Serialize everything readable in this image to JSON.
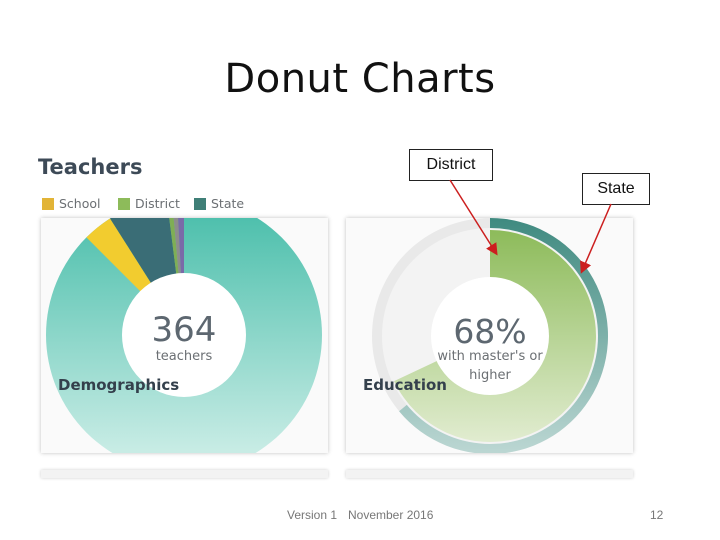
{
  "slide": {
    "title": "Donut Charts",
    "footer_version": "Version 1",
    "footer_date": "November 2016",
    "page_number": "12"
  },
  "widget": {
    "title": "Teachers",
    "legend": [
      {
        "label": "School",
        "color": "#e2b437"
      },
      {
        "label": "District",
        "color": "#8dbb5a"
      },
      {
        "label": "State",
        "color": "#3f7f77"
      }
    ]
  },
  "panels": {
    "demographics": {
      "value": "364",
      "unit": "teachers",
      "label": "Demographics"
    },
    "education": {
      "value": "68%",
      "unit_line1": "with master's or",
      "unit_line2": "higher",
      "label": "Education"
    }
  },
  "callouts": {
    "district": "District",
    "state": "State"
  },
  "chart_data": [
    {
      "type": "donut",
      "center_value": "364",
      "center_label": "teachers",
      "panel_label": "Demographics",
      "slices": [
        {
          "name": "teal-majority",
          "fraction": 0.875,
          "color": "#4cc0ad"
        },
        {
          "name": "yellow",
          "fraction": 0.035,
          "color": "#f2cc2f"
        },
        {
          "name": "dark-teal",
          "fraction": 0.07,
          "color": "#3a6d76"
        },
        {
          "name": "green",
          "fraction": 0.006,
          "color": "#7fae55"
        },
        {
          "name": "grey",
          "fraction": 0.006,
          "color": "#8d8d8d"
        },
        {
          "name": "purple",
          "fraction": 0.008,
          "color": "#7a6aa8"
        }
      ]
    },
    {
      "type": "donut",
      "center_value": "68%",
      "center_label": "with master's or higher",
      "panel_label": "Education",
      "series": [
        {
          "name": "District",
          "fraction": 0.68,
          "color": "#8dbb5a"
        },
        {
          "name": "State",
          "fraction": 0.64,
          "color": "#3f8a80"
        }
      ]
    }
  ]
}
